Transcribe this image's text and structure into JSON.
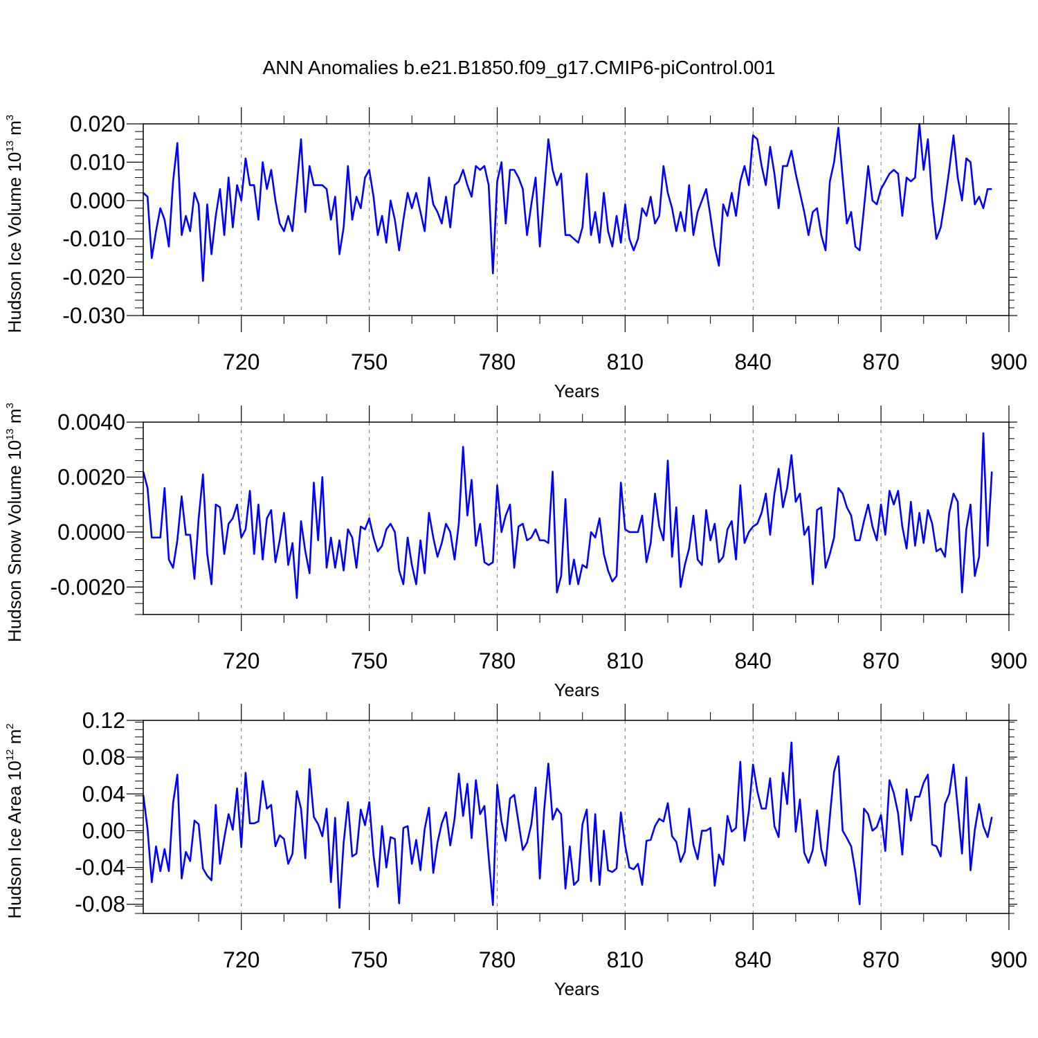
{
  "title": "ANN Anomalies b.e21.B1850.f09_g17.CMIP6-piControl.001",
  "colors": {
    "line": "#0000ff",
    "axis": "#000000",
    "grid": "#777777"
  },
  "chart_data": [
    {
      "type": "line",
      "series_name": "Hudson Ice Volume",
      "ylabel": "Hudson Ice Volume",
      "ylabel_unit_base": "10",
      "ylabel_unit_exp": "13",
      "ylabel_unit": "m",
      "ylabel_unit_exp2": "3",
      "xlabel": "Years",
      "x_start": 697,
      "xlim": [
        697,
        900
      ],
      "ylim": [
        -0.03,
        0.02
      ],
      "x_ticks": [
        "720",
        "750",
        "780",
        "810",
        "840",
        "870",
        "900"
      ],
      "y_ticks": [
        "0.020",
        "0.010",
        "0.000",
        "-0.010",
        "-0.020",
        "-0.030"
      ],
      "y_tick_values": [
        0.02,
        0.01,
        0.0,
        -0.01,
        -0.02,
        -0.03
      ],
      "grid_x": [
        720,
        750,
        780,
        810,
        840,
        870
      ],
      "values": [
        0.002,
        0.001,
        -0.015,
        -0.008,
        -0.002,
        -0.005,
        -0.012,
        0.005,
        0.015,
        -0.009,
        -0.004,
        -0.008,
        0.002,
        -0.001,
        -0.021,
        -0.001,
        -0.014,
        -0.004,
        0.003,
        -0.009,
        0.006,
        -0.007,
        0.004,
        0.0,
        0.011,
        0.004,
        0.004,
        -0.005,
        0.01,
        0.003,
        0.008,
        0.0,
        -0.006,
        -0.008,
        -0.004,
        -0.008,
        0.004,
        0.016,
        -0.003,
        0.009,
        0.004,
        0.004,
        0.004,
        0.003,
        -0.005,
        0.001,
        -0.014,
        -0.007,
        0.009,
        -0.005,
        0.001,
        -0.002,
        0.006,
        0.008,
        0.001,
        -0.009,
        -0.004,
        -0.011,
        0.0,
        -0.005,
        -0.013,
        -0.005,
        0.002,
        -0.002,
        0.002,
        -0.003,
        -0.008,
        0.006,
        -0.001,
        -0.003,
        -0.006,
        0.001,
        -0.007,
        0.004,
        0.005,
        0.008,
        0.004,
        0.001,
        0.009,
        0.008,
        0.009,
        0.004,
        -0.019,
        0.005,
        0.01,
        -0.006,
        0.008,
        0.008,
        0.006,
        0.003,
        -0.009,
        -0.001,
        0.006,
        -0.012,
        0.002,
        0.016,
        0.008,
        0.004,
        0.007,
        -0.009,
        -0.009,
        -0.01,
        -0.011,
        -0.007,
        0.007,
        -0.009,
        -0.003,
        -0.011,
        0.002,
        -0.008,
        -0.012,
        -0.004,
        -0.011,
        -0.001,
        -0.01,
        -0.013,
        -0.01,
        -0.002,
        -0.004,
        0.001,
        -0.006,
        -0.004,
        0.009,
        0.002,
        -0.002,
        -0.008,
        -0.003,
        -0.008,
        0.004,
        -0.009,
        -0.003,
        0.0,
        0.003,
        -0.004,
        -0.012,
        -0.017,
        -0.001,
        -0.004,
        0.002,
        -0.004,
        0.005,
        0.009,
        0.004,
        0.017,
        0.016,
        0.009,
        0.004,
        0.014,
        0.007,
        -0.002,
        0.009,
        0.009,
        0.013,
        0.007,
        0.002,
        -0.003,
        -0.009,
        -0.003,
        -0.002,
        -0.009,
        -0.013,
        0.005,
        0.01,
        0.019,
        0.006,
        -0.006,
        -0.003,
        -0.012,
        -0.013,
        -0.002,
        0.009,
        0.0,
        -0.001,
        0.003,
        0.005,
        0.007,
        0.008,
        0.007,
        -0.004,
        0.006,
        0.005,
        0.006,
        0.02,
        0.008,
        0.016,
        0.0,
        -0.01,
        -0.007,
        0.0,
        0.008,
        0.017,
        0.006,
        0.0,
        0.011,
        0.01,
        -0.001,
        0.001,
        -0.002,
        0.003,
        0.003
      ]
    },
    {
      "type": "line",
      "series_name": "Hudson Snow Volume",
      "ylabel": "Hudson Snow Volume",
      "ylabel_unit_base": "10",
      "ylabel_unit_exp": "13",
      "ylabel_unit": "m",
      "ylabel_unit_exp2": "3",
      "xlabel": "Years",
      "x_start": 697,
      "xlim": [
        697,
        900
      ],
      "ylim": [
        -0.003,
        0.004
      ],
      "x_ticks": [
        "720",
        "750",
        "780",
        "810",
        "840",
        "870",
        "900"
      ],
      "y_ticks": [
        "0.0040",
        "0.0020",
        "0.0000",
        "-0.0020"
      ],
      "y_tick_values": [
        0.004,
        0.002,
        0.0,
        -0.002
      ],
      "grid_x": [
        720,
        750,
        780,
        810,
        840,
        870
      ],
      "values": [
        0.0022,
        0.0016,
        -0.0002,
        -0.0002,
        -0.0002,
        0.0016,
        -0.001,
        -0.0013,
        -0.0003,
        0.0013,
        -0.0001,
        -0.0001,
        -0.0017,
        0.0005,
        0.0021,
        -0.0008,
        -0.0019,
        0.001,
        0.0009,
        -0.0008,
        0.0003,
        0.0005,
        0.001,
        -0.0002,
        0.0001,
        0.0015,
        -0.0008,
        0.001,
        -0.001,
        0.0005,
        0.0008,
        -0.0011,
        -0.0003,
        0.0007,
        -0.0012,
        -0.0004,
        -0.0024,
        0.0004,
        -0.0007,
        -0.0015,
        0.0018,
        -0.0003,
        0.002,
        -0.0013,
        -0.0002,
        -0.0013,
        -0.0003,
        -0.0014,
        0.0001,
        -0.0002,
        -0.0013,
        0.0002,
        0.0001,
        0.0005,
        -0.0002,
        -0.0007,
        -0.0005,
        0.0001,
        0.0003,
        0.0,
        -0.0014,
        -0.0019,
        -0.0002,
        -0.0012,
        -0.0019,
        -0.0003,
        -0.0015,
        0.0007,
        -0.0002,
        -0.0009,
        -0.0004,
        0.0003,
        0.0,
        -0.001,
        0.0003,
        0.0031,
        0.0006,
        0.0019,
        -0.0005,
        0.0003,
        -0.0011,
        -0.0012,
        -0.0011,
        0.0017,
        0.0,
        0.0006,
        0.001,
        -0.0013,
        0.0002,
        0.0003,
        -0.0003,
        -0.0002,
        0.0001,
        -0.0003,
        -0.0003,
        -0.0004,
        0.0022,
        -0.0022,
        -0.0016,
        0.0012,
        -0.0019,
        -0.001,
        -0.0019,
        -0.0012,
        -0.0013,
        0.0,
        -0.0002,
        0.0005,
        -0.0008,
        -0.0014,
        -0.0018,
        -0.0016,
        0.0018,
        0.0001,
        0.0,
        0.0,
        0.0,
        0.0006,
        -0.0011,
        -0.0004,
        0.0014,
        0.0002,
        -0.0003,
        0.0026,
        -0.0009,
        0.0009,
        -0.002,
        -0.0012,
        -0.0006,
        0.0006,
        -0.001,
        -0.0012,
        0.0008,
        -0.0003,
        0.0003,
        -0.0011,
        -0.0009,
        0.0001,
        0.0004,
        -0.001,
        0.0017,
        -0.0004,
        0.0,
        0.0002,
        0.0003,
        0.0007,
        0.0014,
        -0.0001,
        0.0014,
        0.0023,
        0.0009,
        0.0016,
        0.0028,
        0.0011,
        0.0014,
        -0.0001,
        0.0002,
        -0.0019,
        0.0008,
        0.0009,
        -0.0013,
        -0.0008,
        -0.0002,
        0.0016,
        0.0014,
        0.0009,
        0.0006,
        -0.0003,
        -0.0003,
        0.0004,
        0.001,
        0.0002,
        -0.0003,
        0.001,
        -0.0001,
        0.0015,
        0.001,
        0.0015,
        0.0002,
        -0.0006,
        0.0011,
        -0.0005,
        0.0007,
        -0.0004,
        0.0008,
        0.0003,
        -0.0007,
        -0.0006,
        -0.0009,
        0.0007,
        0.0014,
        0.0011,
        -0.0022,
        0.0001,
        0.001,
        -0.0016,
        -0.0009,
        0.0036,
        -0.0005,
        0.0022
      ]
    },
    {
      "type": "line",
      "series_name": "Hudson Ice Area",
      "ylabel": "Hudson Ice Area",
      "ylabel_unit_base": "10",
      "ylabel_unit_exp": "12",
      "ylabel_unit": "m",
      "ylabel_unit_exp2": "2",
      "xlabel": "Years",
      "x_start": 697,
      "xlim": [
        697,
        900
      ],
      "ylim": [
        -0.09,
        0.12
      ],
      "x_ticks": [
        "720",
        "750",
        "780",
        "810",
        "840",
        "870",
        "900"
      ],
      "y_ticks": [
        "0.12",
        "0.08",
        "0.04",
        "0.00",
        "-0.04",
        "-0.08"
      ],
      "y_tick_values": [
        0.12,
        0.08,
        0.04,
        0.0,
        -0.04,
        -0.08
      ],
      "grid_x": [
        720,
        750,
        780,
        810,
        840,
        870
      ],
      "values": [
        0.039,
        0.002,
        -0.056,
        -0.017,
        -0.044,
        -0.02,
        -0.044,
        0.03,
        0.061,
        -0.052,
        -0.023,
        -0.033,
        0.011,
        0.007,
        -0.041,
        -0.049,
        -0.054,
        0.028,
        -0.036,
        -0.008,
        0.018,
        0.001,
        0.046,
        -0.018,
        0.063,
        0.008,
        0.008,
        0.01,
        0.054,
        0.024,
        0.028,
        -0.017,
        -0.005,
        -0.009,
        -0.036,
        -0.025,
        0.043,
        0.024,
        -0.03,
        0.067,
        0.015,
        0.007,
        -0.006,
        0.024,
        -0.056,
        0.014,
        -0.084,
        -0.013,
        0.031,
        -0.028,
        -0.025,
        0.023,
        0.006,
        0.031,
        -0.027,
        -0.061,
        0.005,
        -0.04,
        -0.007,
        -0.009,
        -0.079,
        0.003,
        0.005,
        -0.036,
        -0.01,
        -0.043,
        0.002,
        0.025,
        -0.046,
        -0.013,
        0.008,
        0.02,
        -0.016,
        0.013,
        0.062,
        0.016,
        0.051,
        -0.008,
        0.055,
        0.018,
        0.027,
        -0.029,
        -0.081,
        0.05,
        0.01,
        -0.011,
        0.035,
        0.039,
        0.009,
        -0.021,
        -0.013,
        0.007,
        0.047,
        -0.052,
        0.022,
        0.073,
        0.012,
        0.024,
        0.018,
        -0.063,
        -0.017,
        -0.059,
        -0.054,
        0.007,
        0.023,
        -0.055,
        0.018,
        -0.059,
        0.0,
        -0.043,
        -0.045,
        -0.041,
        0.02,
        -0.016,
        -0.04,
        -0.042,
        -0.036,
        -0.059,
        -0.011,
        -0.01,
        0.005,
        0.013,
        0.01,
        0.03,
        -0.006,
        -0.012,
        -0.034,
        -0.023,
        0.024,
        -0.015,
        -0.031,
        0.0,
        0.0,
        0.003,
        -0.06,
        -0.026,
        -0.037,
        0.016,
        -0.001,
        0.003,
        0.075,
        -0.011,
        0.021,
        0.072,
        0.043,
        0.024,
        0.024,
        0.057,
        0.005,
        -0.007,
        0.063,
        0.029,
        0.096,
        -0.001,
        0.034,
        -0.024,
        -0.035,
        -0.021,
        0.022,
        -0.02,
        -0.038,
        0.015,
        0.064,
        0.081,
        0.0,
        -0.008,
        -0.017,
        -0.045,
        -0.08,
        0.024,
        0.018,
        0.0,
        0.004,
        0.017,
        -0.022,
        0.055,
        0.041,
        0.019,
        -0.026,
        0.045,
        0.011,
        0.037,
        0.037,
        0.052,
        0.061,
        -0.015,
        -0.017,
        -0.028,
        0.029,
        0.04,
        0.072,
        0.025,
        -0.025,
        0.058,
        -0.043,
        0.001,
        0.029,
        0.005,
        -0.007,
        0.015
      ]
    }
  ]
}
